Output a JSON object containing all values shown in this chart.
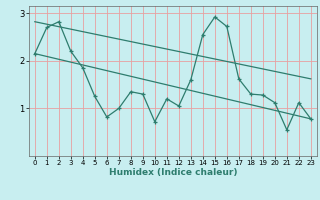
{
  "xlabel": "Humidex (Indice chaleur)",
  "bg_color": "#c8eef0",
  "line_color": "#2e7d6e",
  "grid_color": "#e8a0a0",
  "xlim": [
    -0.5,
    23.5
  ],
  "ylim": [
    0,
    3.15
  ],
  "yticks": [
    1,
    2,
    3
  ],
  "xticks": [
    0,
    1,
    2,
    3,
    4,
    5,
    6,
    7,
    8,
    9,
    10,
    11,
    12,
    13,
    14,
    15,
    16,
    17,
    18,
    19,
    20,
    21,
    22,
    23
  ],
  "line1_x": [
    0,
    1,
    2,
    3,
    4,
    5,
    6,
    7,
    8,
    9,
    10,
    11,
    12,
    13,
    14,
    15,
    16,
    17,
    18,
    19,
    20,
    21,
    22,
    23
  ],
  "line1_y": [
    2.15,
    2.7,
    2.82,
    2.2,
    1.85,
    1.25,
    0.82,
    1.0,
    1.35,
    1.3,
    0.72,
    1.2,
    1.05,
    1.6,
    2.55,
    2.92,
    2.72,
    1.62,
    1.3,
    1.28,
    1.12,
    0.55,
    1.12,
    0.78
  ],
  "line2_x": [
    0,
    23
  ],
  "line2_y": [
    2.15,
    0.78
  ],
  "line3_x": [
    0,
    23
  ],
  "line3_y": [
    2.82,
    1.62
  ]
}
